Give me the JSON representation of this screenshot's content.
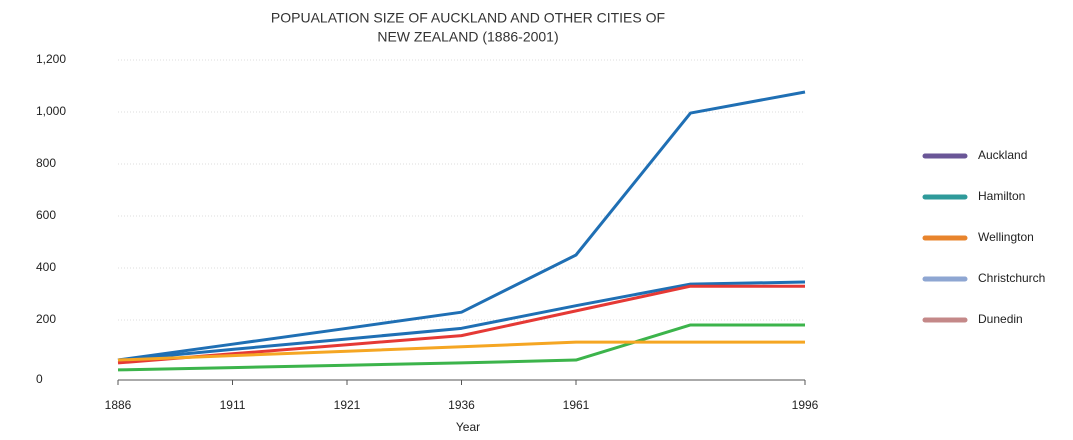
{
  "chart_data": {
    "type": "line",
    "title": [
      "POPUALATION SIZE OF AUCKLAND AND OTHER CITIES OF",
      "NEW ZEALAND (1886-2001)"
    ],
    "x_label": "Year",
    "categories": [
      "1886",
      "1911",
      "1921",
      "1936",
      "1961",
      null,
      "1996"
    ],
    "series": [
      {
        "name": "Auckland",
        "color": "#1f6fb4",
        "legend_color": "#6a5697",
        "values": [
          46,
          107,
          168,
          230,
          450,
          996,
          1077
        ]
      },
      {
        "name": "Hamilton",
        "color": "#3cb44b",
        "legend_color": "#2e9a9a",
        "values": [
          8,
          17,
          26,
          35,
          46,
          181,
          181
        ]
      },
      {
        "name": "Wellington",
        "color": "#1f6fb4",
        "legend_color": "#e8842c",
        "values": [
          46,
          87,
          127,
          168,
          255,
          338,
          346
        ]
      },
      {
        "name": "Christchurch",
        "color": "#e53935",
        "legend_color": "#8ea6d2",
        "values": [
          35,
          70,
          105,
          140,
          235,
          330,
          330
        ]
      },
      {
        "name": "Dunedin",
        "color": "#f5a623",
        "legend_color": "#c48888",
        "values": [
          46,
          63,
          80,
          97,
          115,
          115,
          115
        ]
      }
    ],
    "ylim": [
      0,
      1200
    ],
    "yticks": [
      0,
      200,
      400,
      600,
      800,
      {
        "value": 1000,
        "label": "1,000"
      },
      {
        "value": 1200,
        "label": "1,200"
      }
    ],
    "grid": true,
    "legend": "right"
  }
}
